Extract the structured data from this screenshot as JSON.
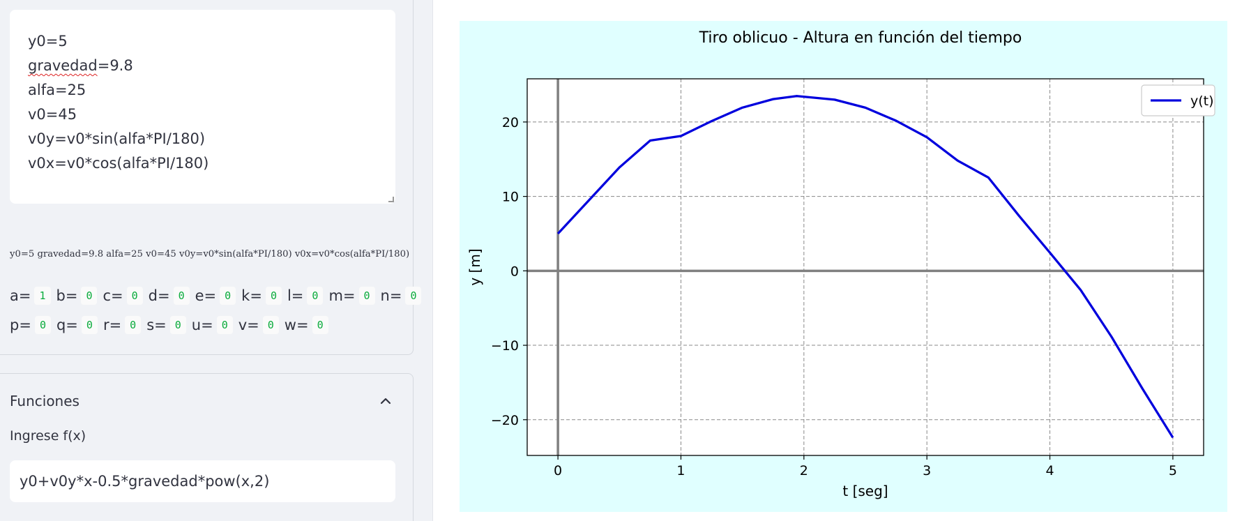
{
  "sidebar": {
    "variables_textarea": {
      "lines": [
        {
          "pre": "y0=5",
          "spell": "",
          "post": ""
        },
        {
          "pre": "",
          "spell": "gravedad",
          "post": "=9.8"
        },
        {
          "pre": "alfa=25",
          "spell": "",
          "post": ""
        },
        {
          "pre": "v0=45",
          "spell": "",
          "post": ""
        },
        {
          "pre": "v0y=v0*sin(alfa*PI/180)",
          "spell": "",
          "post": ""
        },
        {
          "pre": "v0x=v0*cos(alfa*PI/180)",
          "spell": "",
          "post": ""
        }
      ]
    },
    "rendered_equations": "y0=5 gravedad=9.8 alfa=25 v0=45 v0y=v0*sin(alfa*PI/180) v0x=v0*cos(alfa*PI/180)",
    "parameters_row1": [
      {
        "label": "a=",
        "value": "1"
      },
      {
        "label": "b=",
        "value": "0"
      },
      {
        "label": "c=",
        "value": "0"
      },
      {
        "label": "d=",
        "value": "0"
      },
      {
        "label": "e=",
        "value": "0"
      },
      {
        "label": "k=",
        "value": "0"
      },
      {
        "label": "l=",
        "value": "0"
      },
      {
        "label": "m=",
        "value": "0"
      },
      {
        "label": "n=",
        "value": "0"
      }
    ],
    "parameters_row2": [
      {
        "label": "p=",
        "value": "0"
      },
      {
        "label": "q=",
        "value": "0"
      },
      {
        "label": "r=",
        "value": "0"
      },
      {
        "label": "s=",
        "value": "0"
      },
      {
        "label": "u=",
        "value": "0"
      },
      {
        "label": "v=",
        "value": "0"
      },
      {
        "label": "w=",
        "value": "0"
      }
    ],
    "functions_section": {
      "title": "Funciones",
      "icon": "chevron-up-icon",
      "input_label": "Ingrese f(x)",
      "input_value": "y0+v0y*x-0.5*gravedad*pow(x,2)"
    }
  },
  "colors": {
    "sidebar_bg": "#f0f2f6",
    "plot_bg": "#e0ffff",
    "line_color": "#0000dd",
    "param_value_color": "#09ab3b"
  },
  "chart_data": {
    "type": "line",
    "title": "Tiro oblicuo -  Altura en función del tiempo",
    "xlabel": "t [seg]",
    "ylabel": "y [m]",
    "xlim": [
      -0.25,
      5.25
    ],
    "ylim": [
      -24.8,
      25.8
    ],
    "x_ticks": [
      0,
      1,
      2,
      3,
      4,
      5
    ],
    "x_tick_labels": [
      "0",
      "1",
      "2",
      "3",
      "4",
      "5"
    ],
    "y_ticks": [
      -20,
      -10,
      0,
      10,
      20
    ],
    "y_tick_labels": [
      "−20",
      "−10",
      "0",
      "10",
      "20"
    ],
    "grid": true,
    "legend_position": "top-right",
    "series": [
      {
        "name": "y(t)",
        "x": [
          0,
          0.25,
          0.5,
          0.75,
          1.0,
          1.25,
          1.5,
          1.75,
          1.94,
          2.25,
          2.5,
          2.75,
          3.0,
          3.25,
          3.5,
          3.75,
          4.0,
          4.25,
          4.5,
          4.75,
          5.0
        ],
        "y": [
          5.0,
          9.45,
          13.9,
          17.51,
          18.12,
          20.12,
          21.93,
          23.07,
          23.49,
          23.0,
          21.92,
          20.16,
          17.95,
          14.81,
          12.53,
          7.37,
          2.45,
          -2.56,
          -8.82,
          -15.76,
          -22.4
        ]
      }
    ]
  }
}
